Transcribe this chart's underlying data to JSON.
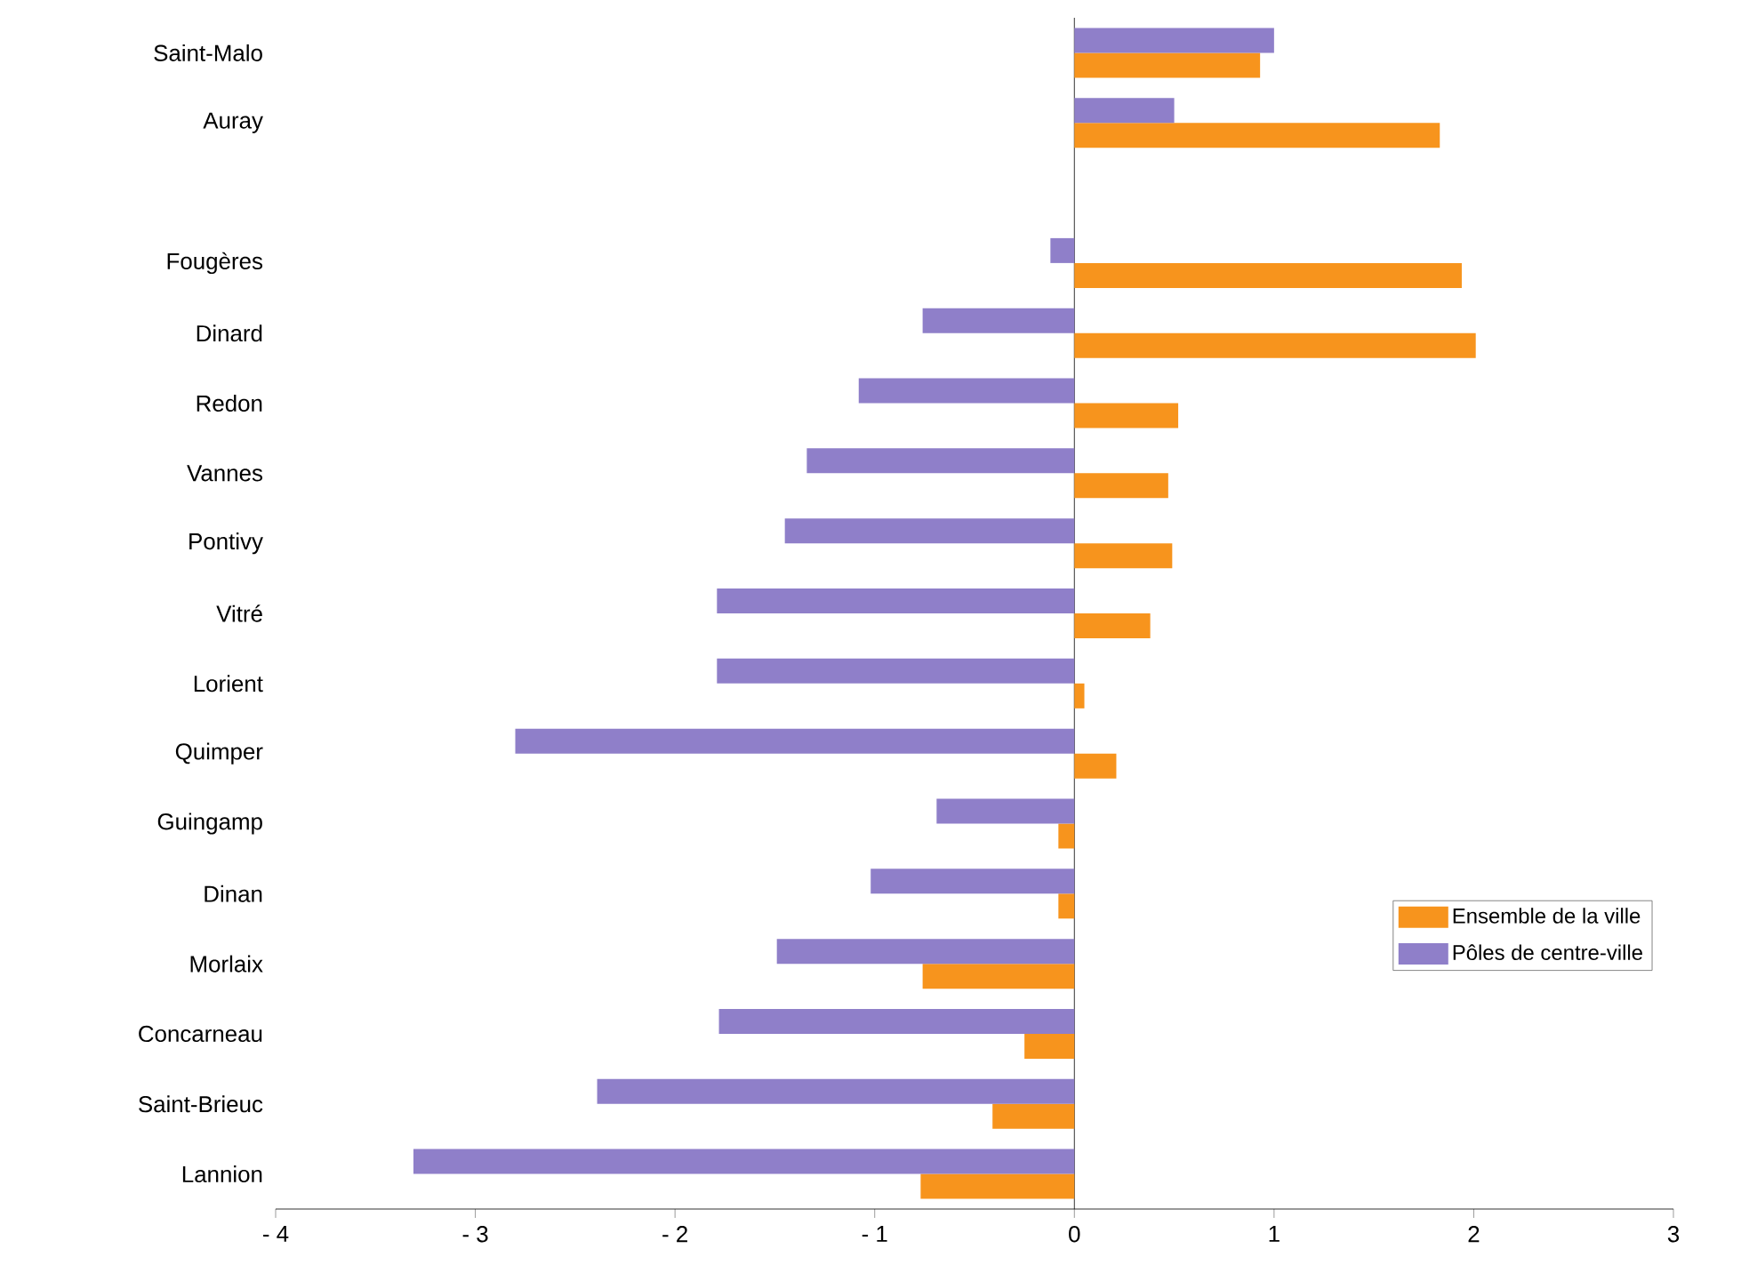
{
  "chart_data": {
    "type": "bar",
    "orientation": "horizontal",
    "categories": [
      "Saint-Malo",
      "Auray",
      null,
      "Fougères",
      "Dinard",
      "Redon",
      "Vannes",
      "Pontivy",
      "Vitré",
      "Lorient",
      "Quimper",
      "Guingamp",
      "Dinan",
      "Morlaix",
      "Concarneau",
      "Saint-Brieuc",
      "Lannion"
    ],
    "series": [
      {
        "name": "Ensemble de la ville",
        "color": "#f7941d",
        "values": [
          0.93,
          1.83,
          null,
          1.94,
          2.01,
          0.52,
          0.47,
          0.49,
          0.38,
          0.05,
          0.21,
          -0.08,
          -0.08,
          -0.76,
          -0.25,
          -0.41,
          -0.77
        ]
      },
      {
        "name": "Pôles de centre-ville",
        "color": "#8f7fc9",
        "values": [
          1.0,
          0.5,
          null,
          -0.12,
          -0.76,
          -1.08,
          -1.34,
          -1.45,
          -1.79,
          -1.79,
          -2.8,
          -0.69,
          -1.02,
          -1.49,
          -1.78,
          -2.39,
          -3.31
        ]
      }
    ],
    "xlim": [
      -4,
      3
    ],
    "xticks": [
      {
        "value": -4,
        "label": "- 4"
      },
      {
        "value": -3,
        "label": "- 3"
      },
      {
        "value": -2,
        "label": "- 2"
      },
      {
        "value": -1,
        "label": "- 1"
      },
      0,
      1,
      2,
      3
    ],
    "legend": "bottom right"
  }
}
